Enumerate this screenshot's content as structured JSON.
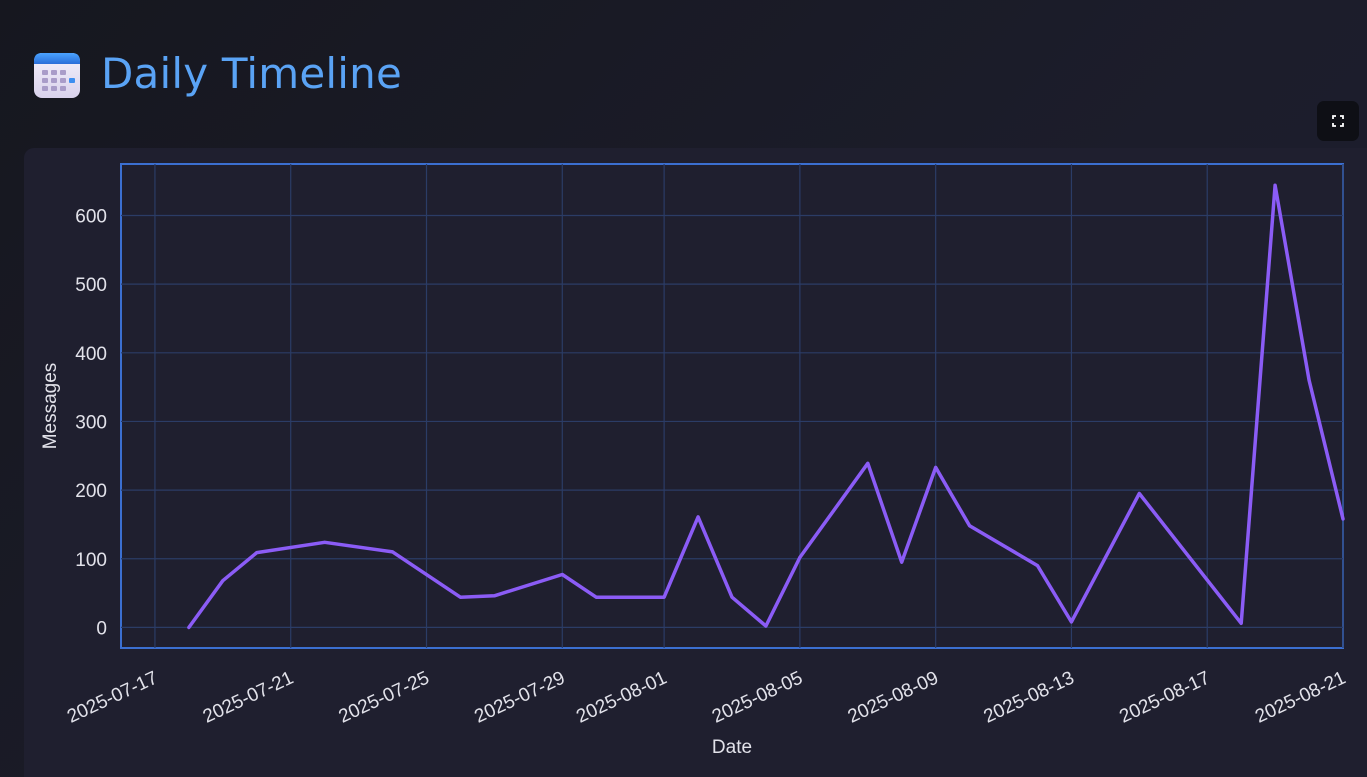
{
  "header": {
    "title": "Daily Timeline",
    "icon": "calendar-icon"
  },
  "toolbar": {
    "fullscreen_icon": "fullscreen-icon"
  },
  "colors": {
    "title": "#5aa3f5",
    "line": "#8b5cf6",
    "frame": "#3b6fd1",
    "grid": "#2b3c66",
    "text": "#e2e2ea"
  },
  "chart_data": {
    "type": "line",
    "title": "",
    "xlabel": "Date",
    "ylabel": "Messages",
    "xlim": [
      "2025-07-16",
      "2025-08-21"
    ],
    "ylim": [
      -30,
      675
    ],
    "grid": true,
    "x_ticks": [
      "2025-07-17",
      "2025-07-21",
      "2025-07-25",
      "2025-07-29",
      "2025-08-01",
      "2025-08-05",
      "2025-08-09",
      "2025-08-13",
      "2025-08-17",
      "2025-08-21"
    ],
    "y_ticks": [
      0,
      100,
      200,
      300,
      400,
      500,
      600
    ],
    "series": [
      {
        "x": [
          "2025-07-18",
          "2025-07-19",
          "2025-07-20",
          "2025-07-22",
          "2025-07-24",
          "2025-07-26",
          "2025-07-27",
          "2025-07-29",
          "2025-07-30",
          "2025-08-01",
          "2025-08-02",
          "2025-08-03",
          "2025-08-04",
          "2025-08-05",
          "2025-08-07",
          "2025-08-08",
          "2025-08-09",
          "2025-08-10",
          "2025-08-12",
          "2025-08-13",
          "2025-08-15",
          "2025-08-18",
          "2025-08-19",
          "2025-08-20",
          "2025-08-21"
        ],
        "values": [
          0,
          68,
          109,
          124,
          110,
          44,
          46,
          77,
          44,
          44,
          161,
          44,
          2,
          102,
          239,
          95,
          233,
          148,
          90,
          8,
          195,
          6,
          644,
          360,
          158
        ]
      }
    ]
  }
}
